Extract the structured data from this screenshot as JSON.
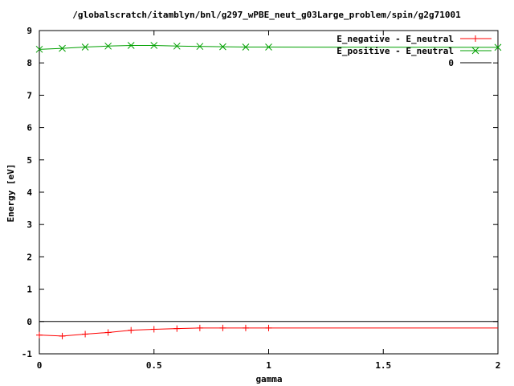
{
  "chart_data": {
    "type": "line",
    "title": "/globalscratch/itamblyn/bnl/g297_wPBE_neut_g03Large_problem/spin/g2g71001",
    "xlabel": "gamma",
    "ylabel": "Energy [eV]",
    "xlim": [
      0,
      2
    ],
    "ylim": [
      -1,
      9
    ],
    "x_ticks": [
      "0",
      "0.5",
      "1",
      "1.5",
      "2"
    ],
    "y_ticks": [
      "-1",
      "0",
      "1",
      "2",
      "3",
      "4",
      "5",
      "6",
      "7",
      "8",
      "9"
    ],
    "grid": false,
    "legend_position": "top-right",
    "series": [
      {
        "name": "E_negative - E_neutral",
        "color": "#ff0000",
        "marker": "plus",
        "x": [
          0,
          0.1,
          0.2,
          0.3,
          0.4,
          0.5,
          0.6,
          0.7,
          0.8,
          0.9,
          1.0,
          2.0
        ],
        "y": [
          -0.42,
          -0.45,
          -0.39,
          -0.34,
          -0.27,
          -0.24,
          -0.22,
          -0.2,
          -0.2,
          -0.2,
          -0.2,
          -0.2
        ],
        "marked_points": 11
      },
      {
        "name": "E_positive - E_neutral",
        "color": "#00a000",
        "marker": "x",
        "x": [
          0,
          0.1,
          0.2,
          0.3,
          0.4,
          0.5,
          0.6,
          0.7,
          0.8,
          0.9,
          1.0,
          2.0
        ],
        "y": [
          8.42,
          8.45,
          8.49,
          8.52,
          8.54,
          8.54,
          8.52,
          8.51,
          8.5,
          8.49,
          8.49,
          8.48
        ],
        "marked_points": 12
      },
      {
        "name": "0",
        "color": "#000000",
        "marker": "none",
        "x": [
          0,
          2
        ],
        "y": [
          0,
          0
        ]
      }
    ]
  }
}
